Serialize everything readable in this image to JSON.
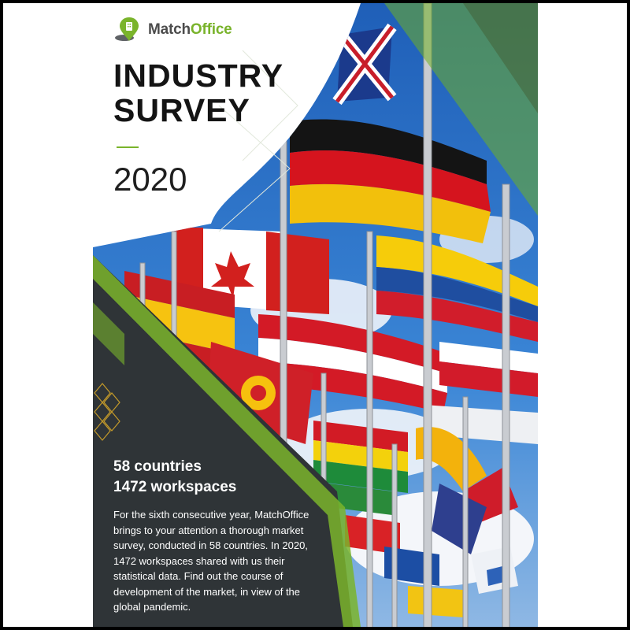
{
  "brand": {
    "name_part1": "Match",
    "name_part2": "Office"
  },
  "cover": {
    "title_line1": "INDUSTRY",
    "title_line2": "SURVEY",
    "year": "2020",
    "stat_countries": "58 countries",
    "stat_workspaces": "1472 workspaces",
    "description": "For the sixth consecutive year, MatchOffice brings to your attention a thorough market survey, conducted in 58 countries. In 2020, 1472 workspaces shared with us their statistical data. Find out the course of development of the market, in view of the global pandemic."
  },
  "colors": {
    "accent": "#79b32b",
    "dark_panel": "#2f3437",
    "sky": "#2f74c8"
  }
}
